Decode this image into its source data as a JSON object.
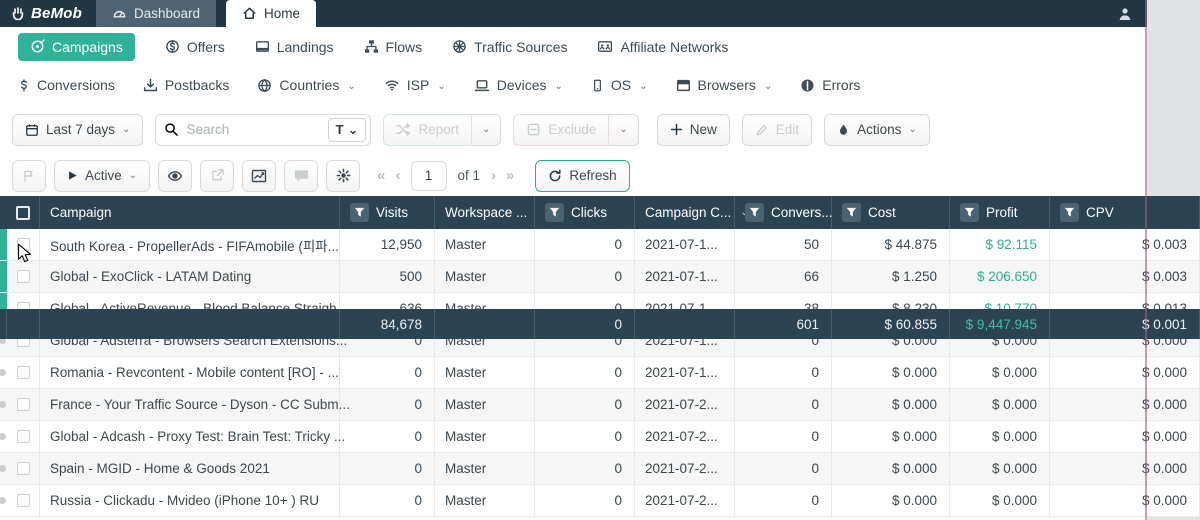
{
  "topbar": {
    "logo": "BeMob",
    "dashboard_tab": "Dashboard",
    "home_tab": "Home"
  },
  "nav_primary": [
    {
      "label": "Campaigns",
      "icon": "target",
      "active": true
    },
    {
      "label": "Offers",
      "icon": "coin",
      "active": false
    },
    {
      "label": "Landings",
      "icon": "landing",
      "active": false
    },
    {
      "label": "Flows",
      "icon": "flow",
      "active": false
    },
    {
      "label": "Traffic Sources",
      "icon": "wheel",
      "active": false
    },
    {
      "label": "Affiliate Networks",
      "icon": "network",
      "active": false
    }
  ],
  "nav_secondary": [
    {
      "label": "Conversions",
      "icon": "dollar",
      "dropdown": false
    },
    {
      "label": "Postbacks",
      "icon": "download",
      "dropdown": false
    },
    {
      "label": "Countries",
      "icon": "globe",
      "dropdown": true
    },
    {
      "label": "ISP",
      "icon": "wifi",
      "dropdown": true
    },
    {
      "label": "Devices",
      "icon": "laptop",
      "dropdown": true
    },
    {
      "label": "OS",
      "icon": "mobile",
      "dropdown": true
    },
    {
      "label": "Browsers",
      "icon": "browser",
      "dropdown": true
    },
    {
      "label": "Errors",
      "icon": "error",
      "dropdown": false
    }
  ],
  "toolbar": {
    "date_range": "Last 7 days",
    "search_placeholder": "Search",
    "type_filter": "T",
    "report": "Report",
    "exclude": "Exclude",
    "new": "New",
    "edit": "Edit",
    "actions": "Actions"
  },
  "controls": {
    "status_filter": "Active",
    "page": "1",
    "page_of": "of 1",
    "refresh": "Refresh"
  },
  "table": {
    "columns": [
      {
        "key": "campaign",
        "label": "Campaign",
        "filter": false,
        "sort": false,
        "align": "left"
      },
      {
        "key": "visits",
        "label": "Visits",
        "filter": true,
        "sort": false,
        "align": "right"
      },
      {
        "key": "workspace",
        "label": "Workspace ...",
        "filter": false,
        "sort": false,
        "align": "left"
      },
      {
        "key": "clicks",
        "label": "Clicks",
        "filter": true,
        "sort": false,
        "align": "right"
      },
      {
        "key": "created",
        "label": "Campaign C...",
        "filter": false,
        "sort": true,
        "align": "left"
      },
      {
        "key": "conversions",
        "label": "Convers...",
        "filter": true,
        "sort": false,
        "align": "right"
      },
      {
        "key": "cost",
        "label": "Cost",
        "filter": true,
        "sort": false,
        "align": "right"
      },
      {
        "key": "profit",
        "label": "Profit",
        "filter": true,
        "sort": false,
        "align": "right"
      },
      {
        "key": "cpv",
        "label": "CPV",
        "filter": true,
        "sort": false,
        "align": "right"
      }
    ],
    "rows": [
      {
        "indicator": "green",
        "campaign": "South Korea - PropellerAds - FIFAmobile (피파...",
        "visits": "12,950",
        "workspace": "Master",
        "clicks": "0",
        "created": "2021-07-1...",
        "conversions": "50",
        "cost": "$ 44.875",
        "profit": "$ 92.115",
        "profit_positive": true,
        "cpv": "$ 0.003"
      },
      {
        "indicator": "green",
        "campaign": "Global - ExoClick - LATAM Dating",
        "visits": "500",
        "workspace": "Master",
        "clicks": "0",
        "created": "2021-07-1...",
        "conversions": "66",
        "cost": "$ 1.250",
        "profit": "$ 206.650",
        "profit_positive": true,
        "cpv": "$ 0.003"
      },
      {
        "indicator": "green",
        "campaign": "Global - ActiveRevenue - Blood Balance Straigh...",
        "visits": "636",
        "workspace": "Master",
        "clicks": "0",
        "created": "2021-07-1...",
        "conversions": "38",
        "cost": "$ 8.230",
        "profit": "$ 10.770",
        "profit_positive": true,
        "cpv": "$ 0.013"
      },
      {
        "indicator": "dot",
        "campaign": "Global - Adsterra - Browsers Search Extensions...",
        "visits": "0",
        "workspace": "Master",
        "clicks": "0",
        "created": "2021-07-1...",
        "conversions": "0",
        "cost": "$ 0.000",
        "profit": "$ 0.000",
        "profit_positive": false,
        "cpv": "$ 0.000"
      },
      {
        "indicator": "dot",
        "campaign": "Romania - Revcontent - Mobile content [RO] - ...",
        "visits": "0",
        "workspace": "Master",
        "clicks": "0",
        "created": "2021-07-1...",
        "conversions": "0",
        "cost": "$ 0.000",
        "profit": "$ 0.000",
        "profit_positive": false,
        "cpv": "$ 0.000"
      },
      {
        "indicator": "dot",
        "campaign": "France - Your Traffic Source - Dyson - CC Subm...",
        "visits": "0",
        "workspace": "Master",
        "clicks": "0",
        "created": "2021-07-2...",
        "conversions": "0",
        "cost": "$ 0.000",
        "profit": "$ 0.000",
        "profit_positive": false,
        "cpv": "$ 0.000"
      },
      {
        "indicator": "dot",
        "campaign": "Global - Adcash - Proxy Test: Brain Test: Tricky ...",
        "visits": "0",
        "workspace": "Master",
        "clicks": "0",
        "created": "2021-07-2...",
        "conversions": "0",
        "cost": "$ 0.000",
        "profit": "$ 0.000",
        "profit_positive": false,
        "cpv": "$ 0.000"
      },
      {
        "indicator": "dot",
        "campaign": "Spain - MGID - Home & Goods 2021",
        "visits": "0",
        "workspace": "Master",
        "clicks": "0",
        "created": "2021-07-2...",
        "conversions": "0",
        "cost": "$ 0.000",
        "profit": "$ 0.000",
        "profit_positive": false,
        "cpv": "$ 0.000"
      },
      {
        "indicator": "dot",
        "campaign": "Russia - Clickadu - Mvideo (iPhone 10+ ) RU",
        "visits": "0",
        "workspace": "Master",
        "clicks": "0",
        "created": "2021-07-2...",
        "conversions": "0",
        "cost": "$ 0.000",
        "profit": "$ 0.000",
        "profit_positive": false,
        "cpv": "$ 0.000"
      }
    ],
    "footer": {
      "visits": "84,678",
      "clicks": "0",
      "conversions": "601",
      "cost": "$ 60.855",
      "profit": "$ 9,447.945",
      "profit_positive": true,
      "cpv": "$ 0.001"
    }
  },
  "colors": {
    "brand_green": "#2fb298",
    "profit_green": "#2bb191",
    "topbar_dark": "#223744",
    "table_header_dark": "#2b4353"
  }
}
